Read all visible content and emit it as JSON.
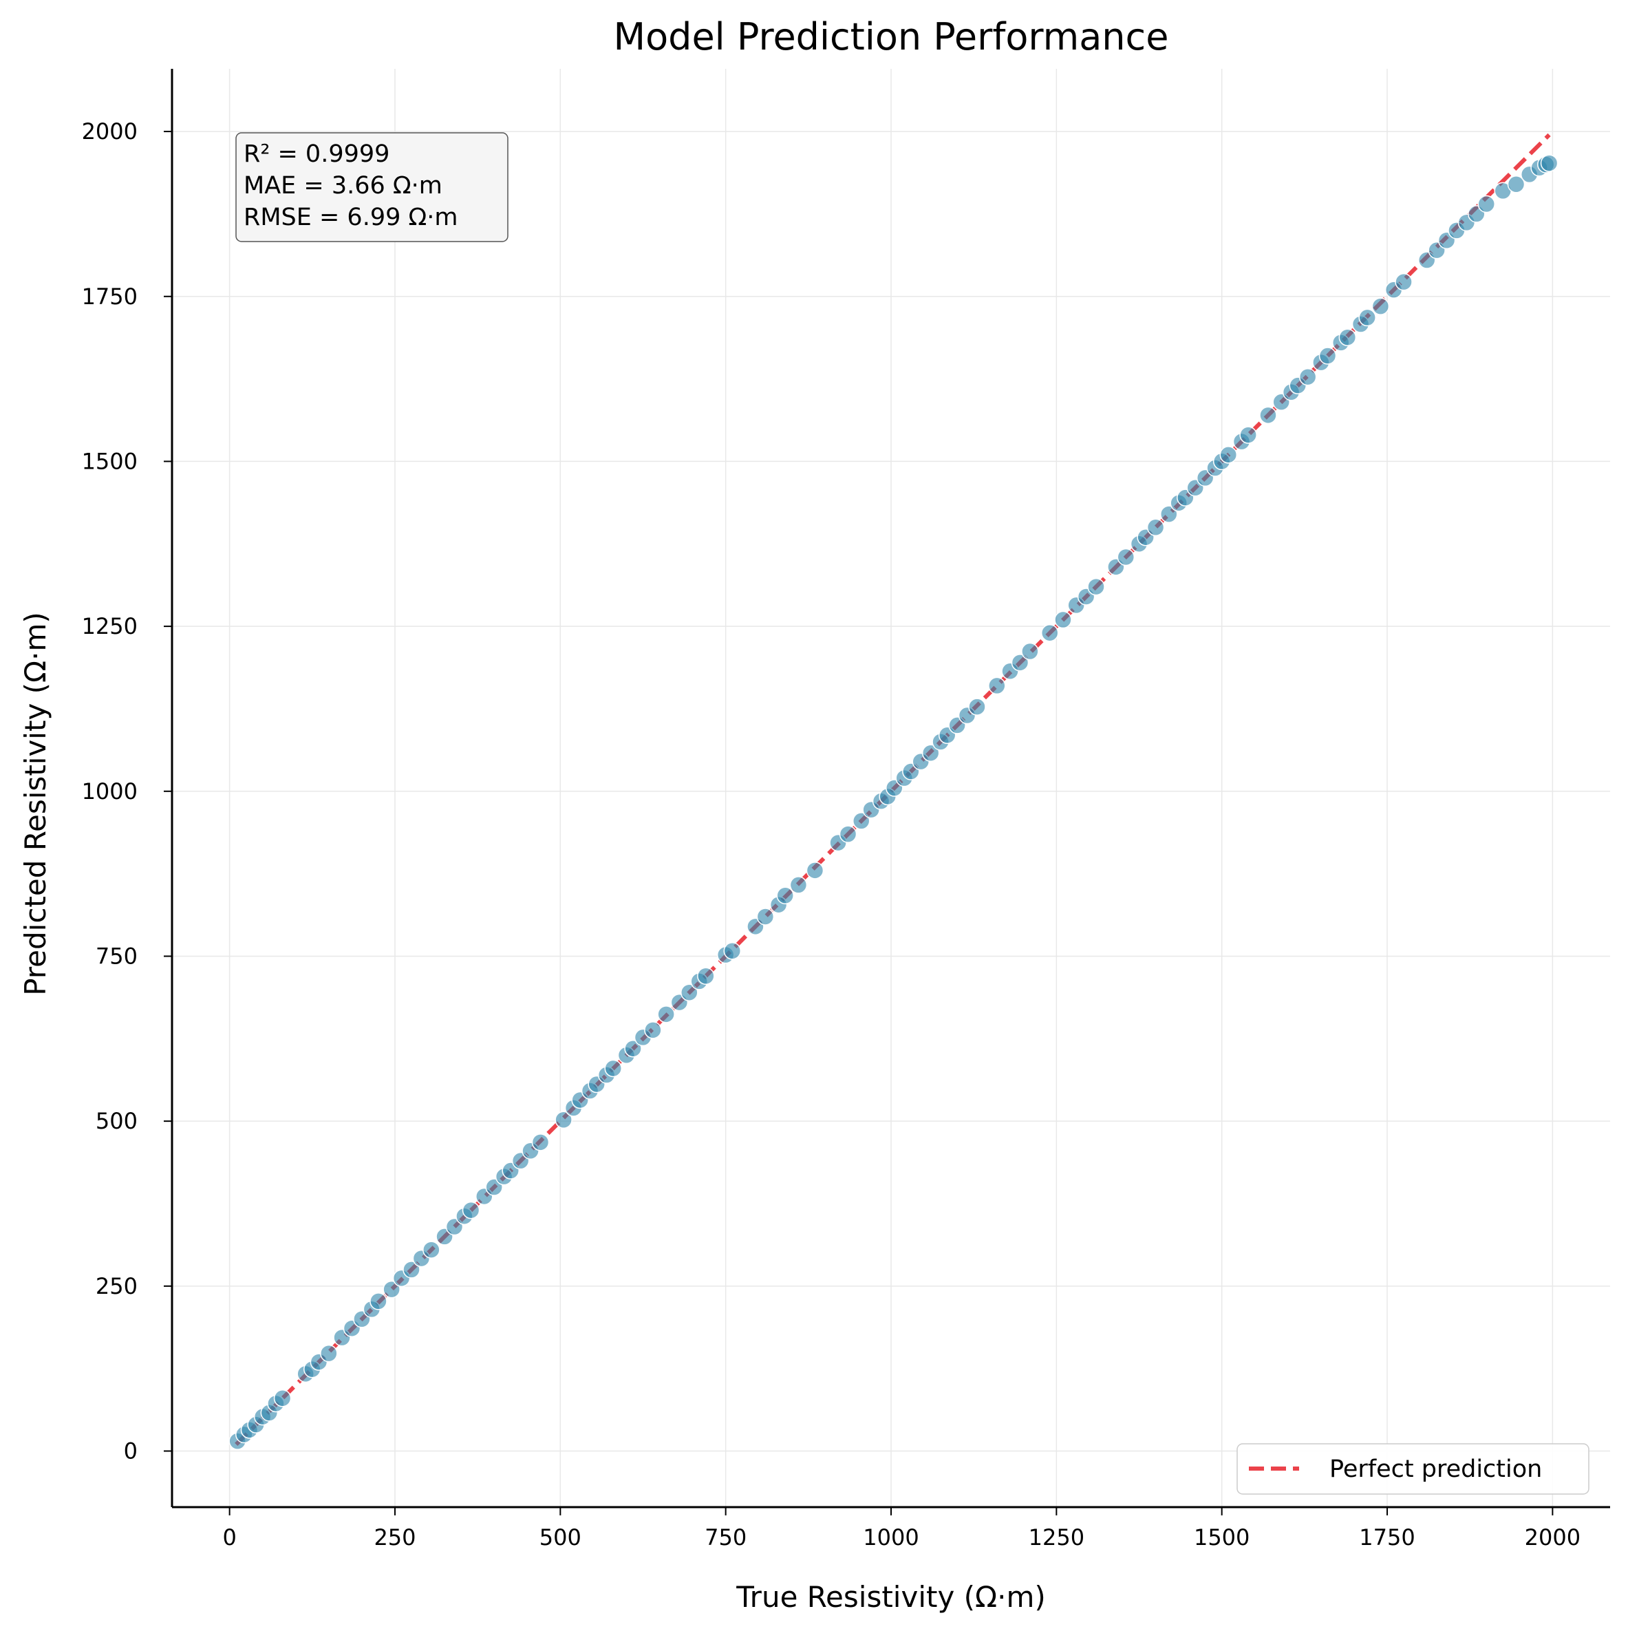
{
  "chart_data": {
    "type": "scatter",
    "title": "Model Prediction Performance",
    "xlabel": "True Resistivity (Ω·m)",
    "ylabel": "Predicted Resistivity (Ω·m)",
    "xlim": [
      -87,
      2087
    ],
    "ylim": [
      -85,
      2095
    ],
    "xticks": [
      0,
      250,
      500,
      750,
      1000,
      1250,
      1500,
      1750,
      2000
    ],
    "yticks": [
      0,
      250,
      500,
      750,
      1000,
      1250,
      1500,
      1750,
      2000
    ],
    "grid": true,
    "stats": [
      "R² = 0.9999",
      "MAE = 3.66 Ω·m",
      "RMSE = 6.99 Ω·m"
    ],
    "legend": {
      "position": "lower-right",
      "entries": [
        "Perfect prediction"
      ]
    },
    "reference_line": {
      "name": "Perfect prediction",
      "from": [
        10,
        10
      ],
      "to": [
        1995,
        1995
      ],
      "color": "#e8212a",
      "style": "dashed"
    },
    "series": [
      {
        "color": "#2e86ab",
        "points": [
          [
            12,
            15
          ],
          [
            22,
            25
          ],
          [
            30,
            32
          ],
          [
            40,
            40
          ],
          [
            50,
            52
          ],
          [
            60,
            58
          ],
          [
            70,
            72
          ],
          [
            80,
            80
          ],
          [
            115,
            117
          ],
          [
            125,
            124
          ],
          [
            135,
            135
          ],
          [
            150,
            148
          ],
          [
            170,
            172
          ],
          [
            185,
            186
          ],
          [
            200,
            200
          ],
          [
            215,
            215
          ],
          [
            225,
            227
          ],
          [
            245,
            245
          ],
          [
            260,
            262
          ],
          [
            275,
            275
          ],
          [
            290,
            292
          ],
          [
            305,
            305
          ],
          [
            325,
            325
          ],
          [
            340,
            340
          ],
          [
            355,
            356
          ],
          [
            365,
            365
          ],
          [
            385,
            386
          ],
          [
            400,
            400
          ],
          [
            415,
            416
          ],
          [
            425,
            425
          ],
          [
            440,
            440
          ],
          [
            455,
            455
          ],
          [
            470,
            468
          ],
          [
            505,
            502
          ],
          [
            520,
            520
          ],
          [
            530,
            532
          ],
          [
            545,
            546
          ],
          [
            555,
            556
          ],
          [
            570,
            570
          ],
          [
            580,
            580
          ],
          [
            600,
            600
          ],
          [
            610,
            610
          ],
          [
            625,
            627
          ],
          [
            640,
            638
          ],
          [
            660,
            662
          ],
          [
            680,
            680
          ],
          [
            695,
            695
          ],
          [
            710,
            712
          ],
          [
            720,
            720
          ],
          [
            750,
            752
          ],
          [
            760,
            758
          ],
          [
            795,
            795
          ],
          [
            810,
            810
          ],
          [
            830,
            828
          ],
          [
            840,
            842
          ],
          [
            860,
            858
          ],
          [
            885,
            880
          ],
          [
            920,
            922
          ],
          [
            935,
            935
          ],
          [
            955,
            955
          ],
          [
            970,
            972
          ],
          [
            985,
            985
          ],
          [
            995,
            992
          ],
          [
            1005,
            1005
          ],
          [
            1020,
            1020
          ],
          [
            1030,
            1030
          ],
          [
            1045,
            1045
          ],
          [
            1060,
            1058
          ],
          [
            1075,
            1075
          ],
          [
            1085,
            1085
          ],
          [
            1100,
            1100
          ],
          [
            1115,
            1115
          ],
          [
            1130,
            1128
          ],
          [
            1160,
            1160
          ],
          [
            1180,
            1182
          ],
          [
            1195,
            1195
          ],
          [
            1210,
            1212
          ],
          [
            1240,
            1240
          ],
          [
            1260,
            1260
          ],
          [
            1280,
            1282
          ],
          [
            1295,
            1295
          ],
          [
            1310,
            1310
          ],
          [
            1340,
            1340
          ],
          [
            1355,
            1355
          ],
          [
            1375,
            1375
          ],
          [
            1385,
            1385
          ],
          [
            1400,
            1400
          ],
          [
            1420,
            1420
          ],
          [
            1435,
            1437
          ],
          [
            1445,
            1445
          ],
          [
            1460,
            1460
          ],
          [
            1475,
            1475
          ],
          [
            1490,
            1490
          ],
          [
            1500,
            1500
          ],
          [
            1510,
            1510
          ],
          [
            1530,
            1530
          ],
          [
            1540,
            1540
          ],
          [
            1570,
            1570
          ],
          [
            1590,
            1590
          ],
          [
            1605,
            1605
          ],
          [
            1615,
            1615
          ],
          [
            1630,
            1628
          ],
          [
            1650,
            1650
          ],
          [
            1660,
            1660
          ],
          [
            1680,
            1680
          ],
          [
            1690,
            1688
          ],
          [
            1710,
            1708
          ],
          [
            1720,
            1718
          ],
          [
            1740,
            1735
          ],
          [
            1760,
            1760
          ],
          [
            1775,
            1772
          ],
          [
            1810,
            1805
          ],
          [
            1825,
            1820
          ],
          [
            1840,
            1835
          ],
          [
            1855,
            1850
          ],
          [
            1870,
            1862
          ],
          [
            1885,
            1875
          ],
          [
            1900,
            1890
          ],
          [
            1925,
            1910
          ],
          [
            1945,
            1920
          ],
          [
            1965,
            1935
          ],
          [
            1980,
            1945
          ],
          [
            1990,
            1950
          ],
          [
            1995,
            1952
          ]
        ]
      }
    ]
  }
}
